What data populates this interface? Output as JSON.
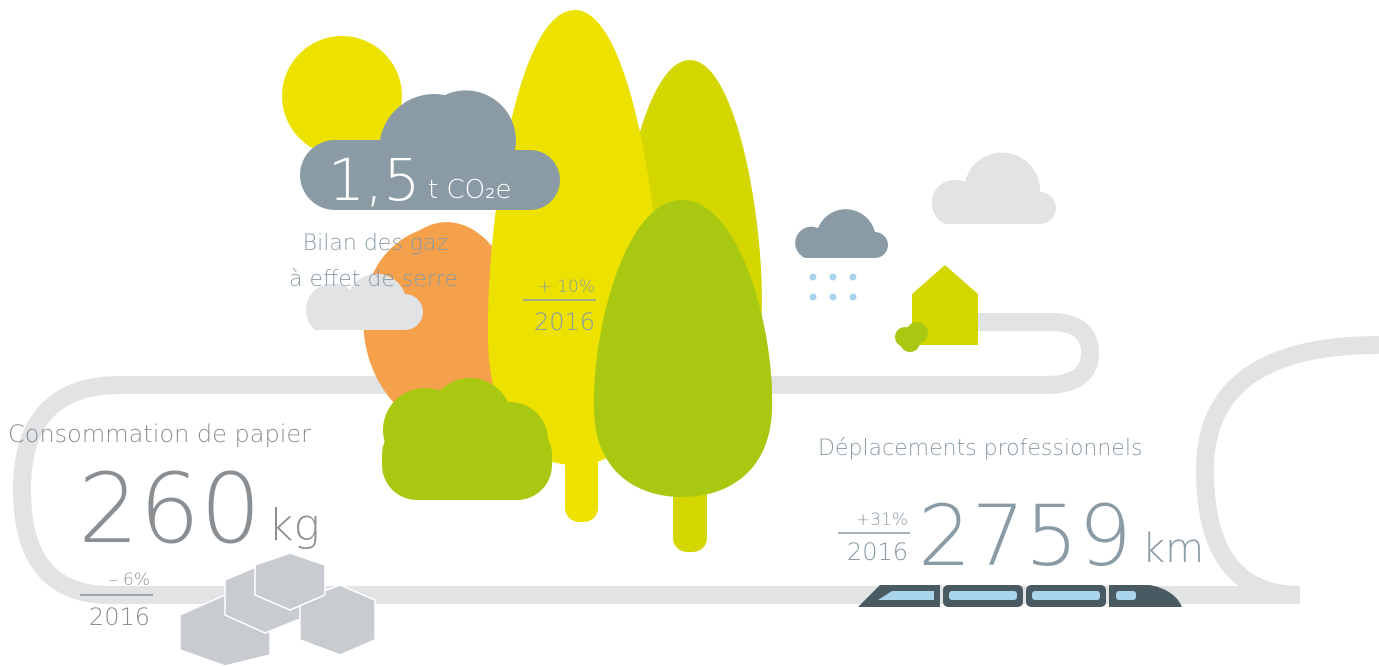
{
  "ghg": {
    "value": "1,5",
    "unit": "t CO₂e",
    "label_lines": [
      "Bilan des gaz",
      "à effet de serre"
    ],
    "change": "+ 10%",
    "year": "2016"
  },
  "paper": {
    "label": "Consommation de papier",
    "value": "260",
    "unit": "kg",
    "change": "– 6%",
    "year": "2016"
  },
  "travel": {
    "label": "Déplacements professionnels",
    "value": "2759",
    "unit": "km",
    "change": "+31%",
    "year": "2016"
  }
}
